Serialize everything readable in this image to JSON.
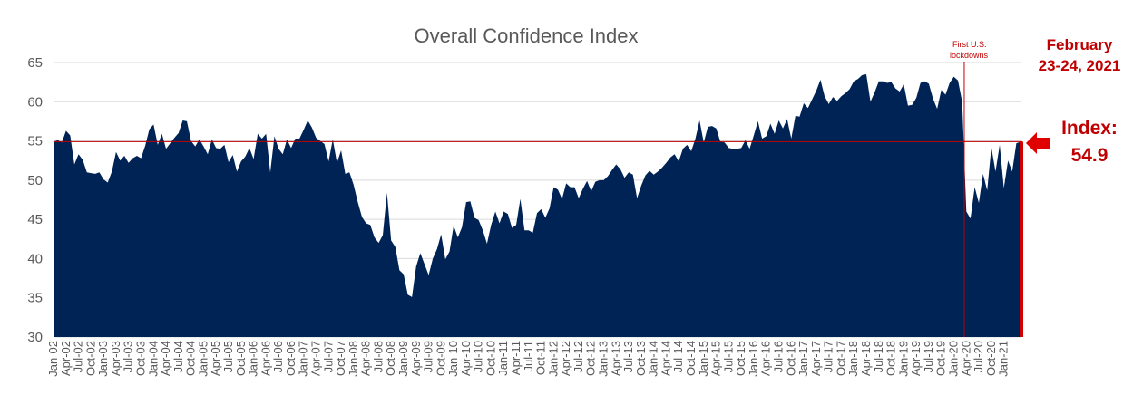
{
  "chart_data": {
    "type": "area",
    "title": "Overall Confidence Index",
    "xlabel": "",
    "ylabel": "",
    "ylim": [
      30,
      65
    ],
    "yticks": [
      30,
      35,
      40,
      45,
      50,
      55,
      60,
      65
    ],
    "grid": true,
    "colors": {
      "area": "#002355",
      "annotation": "#c00000",
      "grid": "#d9d9d9",
      "text": "#595959"
    },
    "x_tick_labels": [
      "Jan-02",
      "Apr-02",
      "Jul-02",
      "Oct-02",
      "Jan-03",
      "Apr-03",
      "Jul-03",
      "Oct-03",
      "Jan-04",
      "Apr-04",
      "Jul-04",
      "Oct-04",
      "Jan-05",
      "Apr-05",
      "Jul-05",
      "Oct-05",
      "Jan-06",
      "Apr-06",
      "Jul-06",
      "Oct-06",
      "Jan-07",
      "Apr-07",
      "Jul-07",
      "Oct-07",
      "Jan-08",
      "Apr-08",
      "Jul-08",
      "Oct-08",
      "Jan-09",
      "Apr-09",
      "Jul-09",
      "Oct-09",
      "Jan-10",
      "Apr-10",
      "Jul-10",
      "Oct-10",
      "Jan-11",
      "Apr-11",
      "Jul-11",
      "Oct-11",
      "Jan-12",
      "Apr-12",
      "Jul-12",
      "Oct-12",
      "Jan-13",
      "Apr-13",
      "Jul-13",
      "Oct-13",
      "Jan-14",
      "Apr-14",
      "Jul-14",
      "Oct-14",
      "Jan-15",
      "Apr-15",
      "Jul-15",
      "Oct-15",
      "Jan-16",
      "Apr-16",
      "Jul-16",
      "Oct-16",
      "Jan-17",
      "Apr-17",
      "Jul-17",
      "Oct-17",
      "Jan-18",
      "Apr-18",
      "Jul-18",
      "Oct-18",
      "Jan-19",
      "Apr-19",
      "Jul-19",
      "Oct-19",
      "Jan-20",
      "Apr-20",
      "Jul-20",
      "Oct-20",
      "Jan-21"
    ],
    "series": [
      {
        "values": [
          54.9,
          55.1,
          54.8,
          56.3,
          55.7,
          52.0,
          53.3,
          52.6,
          51.0,
          50.9,
          50.8,
          51.0,
          50.1,
          49.7,
          51.1,
          53.6,
          52.5,
          53.1,
          52.2,
          52.8,
          53.1,
          52.8,
          54.4,
          56.5,
          57.1,
          54.5,
          55.9,
          54.0,
          54.7,
          55.4,
          56.0,
          57.6,
          57.5,
          55.0,
          54.3,
          55.2,
          54.3,
          53.3,
          55.2,
          54.1,
          54.0,
          54.5,
          52.3,
          53.2,
          51.1,
          52.4,
          53.0,
          54.1,
          52.7,
          55.9,
          55.3,
          55.9,
          51.0,
          55.6,
          54.0,
          53.3,
          55.2,
          54.1,
          55.3,
          55.3,
          56.4,
          57.6,
          56.7,
          55.4,
          55.0,
          54.6,
          52.4,
          55.2,
          52.2,
          53.8,
          50.8,
          51.0,
          49.4,
          47.2,
          45.3,
          44.5,
          44.3,
          42.7,
          42.0,
          43.0,
          48.4,
          42.3,
          41.5,
          38.5,
          38.0,
          35.4,
          35.1,
          39.0,
          40.7,
          39.3,
          37.9,
          40.0,
          41.2,
          43.1,
          39.9,
          40.9,
          44.2,
          42.7,
          44.0,
          47.2,
          47.3,
          45.2,
          44.9,
          43.6,
          41.9,
          44.3,
          46.0,
          44.5,
          46.0,
          45.7,
          43.9,
          44.3,
          47.6,
          43.6,
          43.6,
          43.3,
          45.8,
          46.3,
          45.2,
          46.4,
          49.1,
          48.8,
          47.6,
          49.6,
          49.1,
          49.1,
          47.7,
          48.9,
          49.9,
          48.6,
          49.8,
          50.0,
          50.0,
          50.5,
          51.3,
          52.0,
          51.4,
          50.3,
          51.0,
          50.7,
          47.7,
          49.3,
          50.6,
          51.2,
          50.7,
          51.1,
          51.6,
          52.2,
          52.9,
          53.3,
          52.4,
          54.0,
          54.5,
          53.7,
          55.3,
          57.6,
          54.8,
          56.8,
          56.9,
          56.6,
          54.9,
          54.8,
          54.1,
          54.0,
          54.0,
          54.1,
          55.1,
          54.0,
          55.7,
          57.5,
          55.3,
          55.6,
          57.2,
          55.9,
          57.6,
          56.6,
          57.8,
          55.3,
          58.2,
          58.1,
          59.8,
          59.2,
          60.3,
          61.4,
          62.8,
          60.7,
          59.7,
          60.6,
          60.1,
          60.7,
          61.1,
          61.6,
          62.6,
          62.9,
          63.4,
          63.5,
          60.0,
          61.2,
          62.6,
          62.6,
          62.4,
          62.5,
          61.7,
          61.3,
          62.2,
          59.5,
          59.6,
          60.5,
          62.4,
          62.6,
          62.3,
          60.4,
          59.1,
          61.5,
          60.9,
          62.4,
          63.2,
          62.7,
          60.0,
          46.0,
          45.1,
          49.1,
          47.1,
          50.8,
          48.7,
          54.2,
          51.1,
          54.5,
          49.0,
          52.5,
          51.1,
          54.7,
          54.9
        ]
      }
    ],
    "current_value": 54.9,
    "annotations": {
      "lockdown_label_1": "First U.S.",
      "lockdown_label_2": "lockdowns",
      "date_line_1": "February",
      "date_line_2": "23-24, 2021",
      "index_line_1": "Index:",
      "index_line_2": "54.9"
    }
  }
}
